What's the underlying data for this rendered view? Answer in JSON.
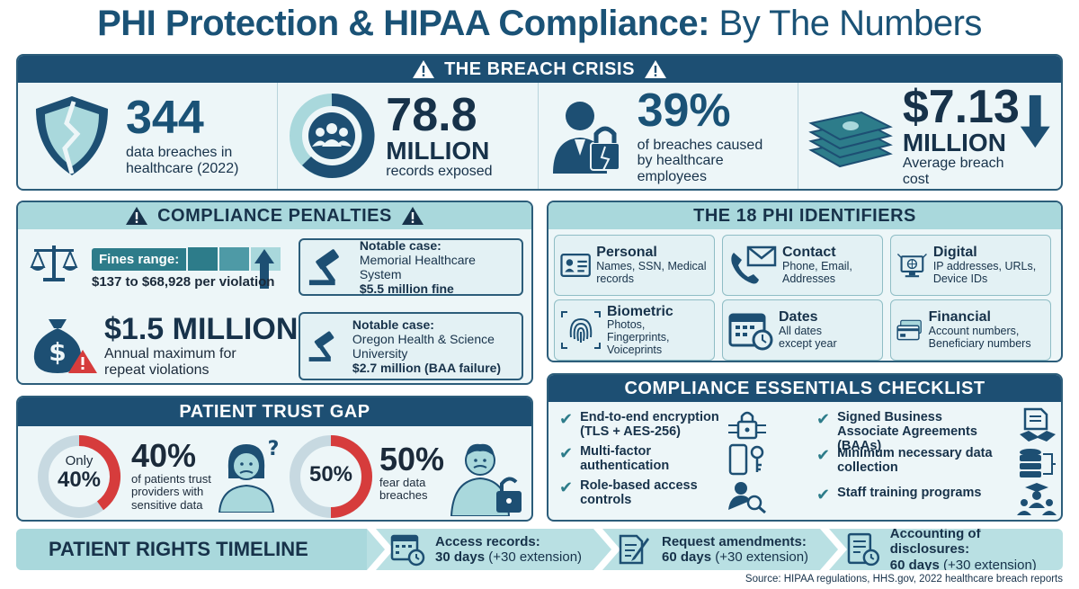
{
  "title": {
    "bold": "PHI Protection & HIPAA Compliance:",
    "light": "By The Numbers"
  },
  "breach": {
    "heading": "THE BREACH CRISIS",
    "stats": [
      {
        "value": "344",
        "label": "data breaches in healthcare (2022)"
      },
      {
        "value": "78.8",
        "unit": "MILLION",
        "label": "records exposed"
      },
      {
        "value": "39%",
        "label": "of breaches caused by healthcare employees"
      },
      {
        "value": "$7.13",
        "unit": "MILLION",
        "label": "Average breach cost"
      }
    ]
  },
  "penalties": {
    "heading": "COMPLIANCE PENALTIES",
    "fines_label": "Fines range:",
    "fines_range": "$137 to $68,928 per violation",
    "max_value": "$1.5 MILLION",
    "max_label": "Annual maximum for repeat violations",
    "cases": [
      {
        "label": "Notable case:",
        "name": "Memorial Healthcare System",
        "fine": "$5.5 million fine"
      },
      {
        "label": "Notable case:",
        "name": "Oregon Health & Science University",
        "fine": "$2.7 million (BAA failure)"
      }
    ]
  },
  "identifiers": {
    "heading": "THE 18 PHI IDENTIFIERS",
    "items": [
      {
        "title": "Personal",
        "desc": "Names, SSN, Medical records",
        "icon": "id-card-icon"
      },
      {
        "title": "Contact",
        "desc": "Phone, Email, Addresses",
        "icon": "phone-mail-icon"
      },
      {
        "title": "Digital",
        "desc": "IP addresses, URLs, Device IDs",
        "icon": "computer-icon"
      },
      {
        "title": "Biometric",
        "desc": "Photos, Fingerprints, Voiceprints",
        "icon": "fingerprint-icon"
      },
      {
        "title": "Dates",
        "desc": "All dates except year",
        "icon": "calendar-icon"
      },
      {
        "title": "Financial",
        "desc": "Account numbers, Beneficiary numbers",
        "icon": "credit-card-icon"
      }
    ]
  },
  "trust": {
    "heading": "PATIENT TRUST GAP",
    "left": {
      "ring_top": "Only",
      "ring_value": "40%",
      "value": "40%",
      "label": "of patients trust providers with sensitive data",
      "fraction": 0.4
    },
    "right": {
      "ring_value": "50%",
      "value": "50%",
      "label": "fear data breaches",
      "fraction": 0.5
    }
  },
  "checklist": {
    "heading": "COMPLIANCE ESSENTIALS CHECKLIST",
    "left": [
      "End-to-end encryption (TLS + AES-256)",
      "Multi-factor authentication",
      "Role-based access controls"
    ],
    "right": [
      "Signed Business Associate Agreements (BAAs)",
      "Minimum necessary data collection",
      "Staff training programs"
    ]
  },
  "timeline": {
    "title": "PATIENT RIGHTS TIMELINE",
    "steps": [
      {
        "title": "Access records:",
        "days": "30 days",
        "ext": "(+30 extension)"
      },
      {
        "title": "Request amendments:",
        "days": "60 days",
        "ext": "(+30 extension)"
      },
      {
        "title": "Accounting of disclosures:",
        "days": "60 days",
        "ext": "(+30 extension)"
      }
    ]
  },
  "source": "Source: HIPAA regulations, HHS.gov, 2022 healthcare breach reports",
  "colors": {
    "navy": "#1d4f73",
    "teal": "#2d7c8a",
    "light_teal": "#a9d8dc",
    "red": "#d63c3c"
  }
}
